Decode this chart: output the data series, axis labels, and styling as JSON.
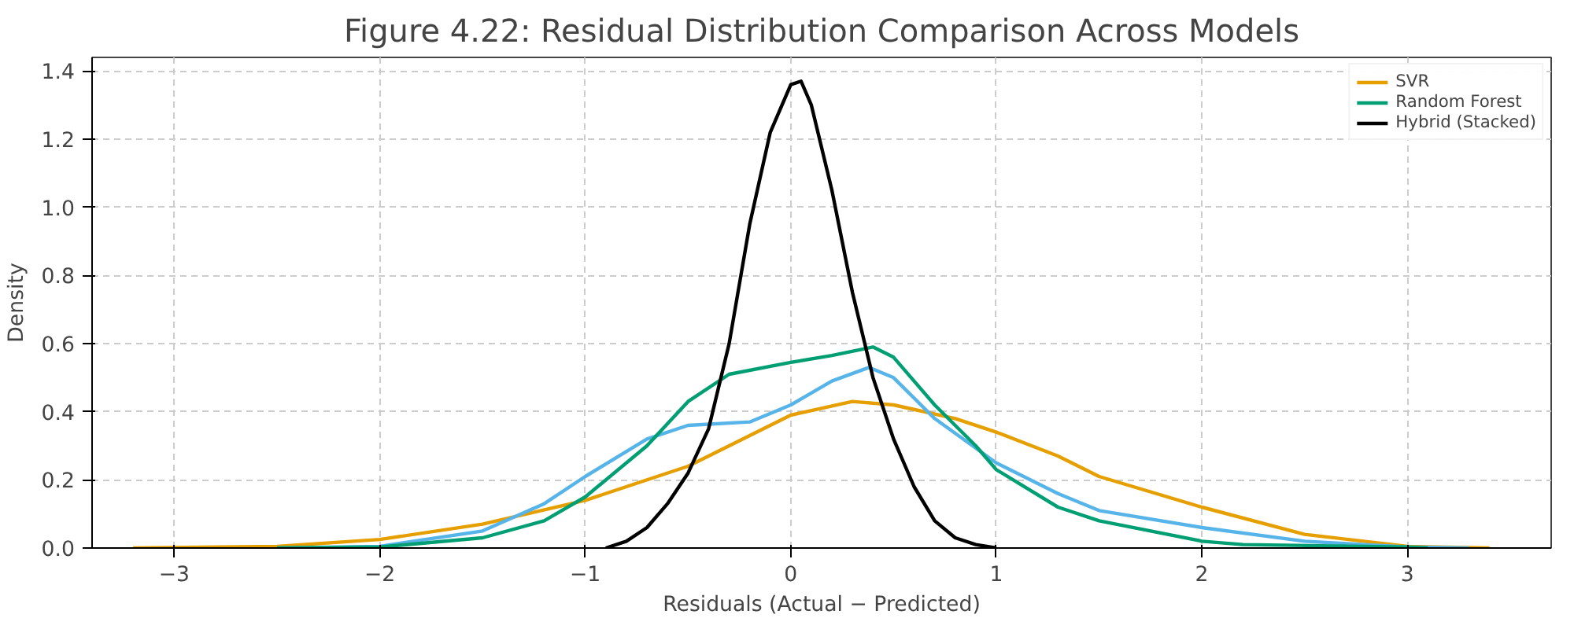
{
  "chart_data": {
    "type": "line",
    "title": "Figure 4.22: Residual Distribution Comparison Across Models",
    "xlabel": "Residuals (Actual − Predicted)",
    "ylabel": "Density",
    "xlim": [
      -3.4,
      3.7
    ],
    "ylim": [
      0,
      1.44
    ],
    "xticks": [
      {
        "value": -3,
        "label": "−3"
      },
      {
        "value": -2,
        "label": "−2"
      },
      {
        "value": -1,
        "label": "−1"
      },
      0,
      1,
      2,
      3
    ],
    "yticks": [
      {
        "value": 0,
        "label": "0.0"
      },
      {
        "value": 0.2,
        "label": "0.2"
      },
      {
        "value": 0.4,
        "label": "0.4"
      },
      {
        "value": 0.6,
        "label": "0.6"
      },
      {
        "value": 0.8,
        "label": "0.8"
      },
      {
        "value": 1.0,
        "label": "1.0"
      },
      {
        "value": 1.2,
        "label": "1.2"
      },
      {
        "value": 1.4,
        "label": "1.4"
      }
    ],
    "grid": true,
    "legend": "top right",
    "line_style": "solid",
    "marker": "none",
    "series": [
      {
        "name": "SVR",
        "color": "#e69f00",
        "x": [
          -3.2,
          -2.5,
          -2,
          -1.5,
          -1,
          -0.5,
          -0.2,
          0,
          0.3,
          0.5,
          0.8,
          1,
          1.3,
          1.5,
          2,
          2.5,
          3,
          3.4
        ],
        "values": [
          0,
          0.005,
          0.025,
          0.07,
          0.14,
          0.24,
          0.33,
          0.39,
          0.43,
          0.42,
          0.38,
          0.34,
          0.27,
          0.21,
          0.12,
          0.04,
          0.005,
          0
        ]
      },
      {
        "color": "#56b4e9",
        "x": [
          -2.5,
          -2,
          -1.5,
          -1.2,
          -1,
          -0.7,
          -0.5,
          -0.2,
          0,
          0.2,
          0.38,
          0.5,
          0.7,
          1,
          1.3,
          1.5,
          2,
          2.5,
          3,
          3.3
        ],
        "values": [
          0,
          0.005,
          0.05,
          0.13,
          0.21,
          0.32,
          0.36,
          0.37,
          0.42,
          0.49,
          0.53,
          0.5,
          0.38,
          0.25,
          0.16,
          0.11,
          0.06,
          0.02,
          0.003,
          0
        ]
      },
      {
        "name": "Random Forest",
        "color": "#009e73",
        "x": [
          -2.5,
          -2,
          -1.5,
          -1.2,
          -1,
          -0.7,
          -0.5,
          -0.3,
          0,
          0.2,
          0.4,
          0.5,
          0.7,
          0.9,
          1,
          1.3,
          1.5,
          2,
          2.2,
          3,
          3.1
        ],
        "values": [
          0,
          0.003,
          0.03,
          0.08,
          0.15,
          0.3,
          0.43,
          0.51,
          0.545,
          0.565,
          0.59,
          0.56,
          0.42,
          0.3,
          0.23,
          0.12,
          0.08,
          0.02,
          0.01,
          0.003,
          0
        ]
      },
      {
        "name": "Hybrid (Stacked)",
        "color": "#000000",
        "x": [
          -0.9,
          -0.8,
          -0.7,
          -0.6,
          -0.5,
          -0.4,
          -0.3,
          -0.2,
          -0.1,
          0,
          0.05,
          0.1,
          0.2,
          0.3,
          0.4,
          0.5,
          0.6,
          0.7,
          0.8,
          0.9,
          1.0
        ],
        "values": [
          0,
          0.02,
          0.06,
          0.13,
          0.22,
          0.35,
          0.6,
          0.95,
          1.22,
          1.36,
          1.37,
          1.3,
          1.05,
          0.75,
          0.5,
          0.32,
          0.18,
          0.08,
          0.03,
          0.01,
          0
        ]
      }
    ]
  }
}
